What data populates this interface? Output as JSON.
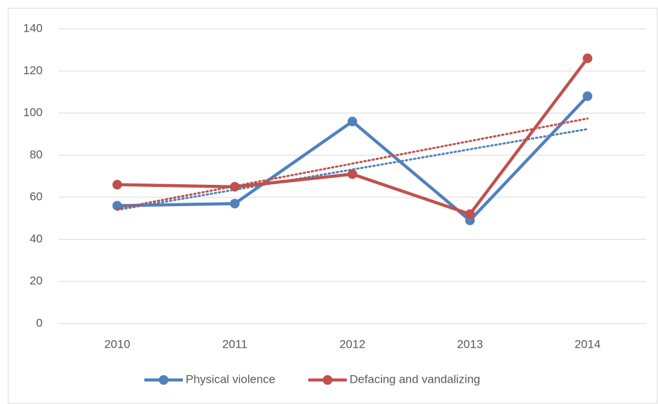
{
  "chart_data": {
    "type": "line",
    "categories": [
      "2010",
      "2011",
      "2012",
      "2013",
      "2014"
    ],
    "series": [
      {
        "name": "Physical violence",
        "color": "#4f81bd",
        "values": [
          56,
          57,
          96,
          49,
          108
        ]
      },
      {
        "name": "Defacing and vandalizing",
        "color": "#c0504d",
        "values": [
          66,
          65,
          71,
          52,
          126
        ]
      }
    ],
    "ylim": [
      0,
      140
    ],
    "yticks": [
      0,
      20,
      40,
      60,
      80,
      100,
      120,
      140
    ],
    "grid": true,
    "trendline": "linear",
    "legend": "bottom"
  }
}
